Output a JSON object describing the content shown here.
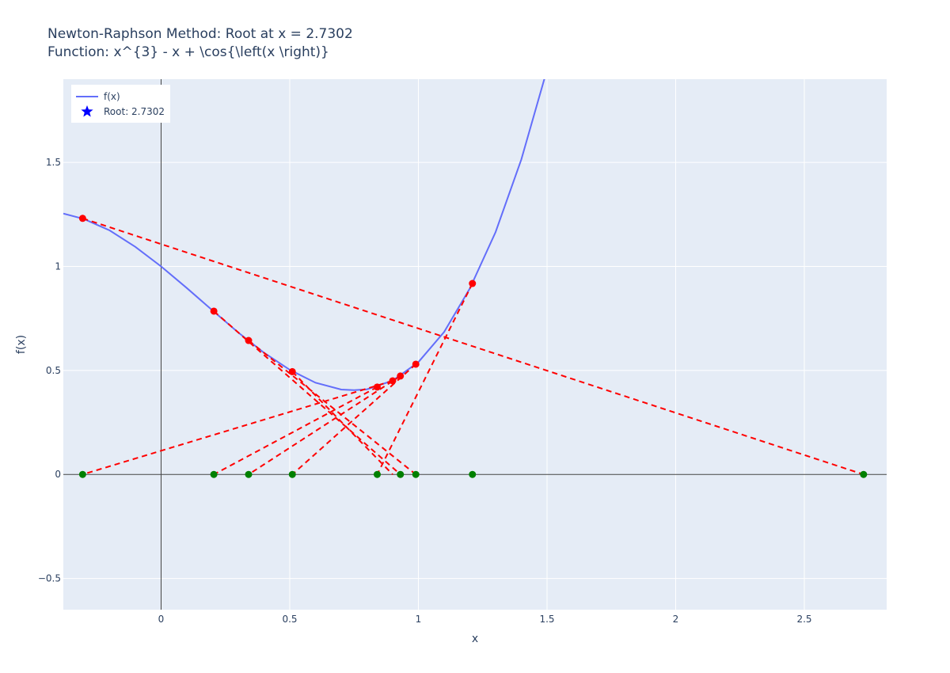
{
  "chart_data": {
    "type": "line",
    "title": "Newton-Raphson Method: Root at x = 2.7302",
    "subtitle": "Function: x^{3} - x + \\cos{\\left(x \\right)}",
    "xlabel": "x",
    "ylabel": "f(x)",
    "xlim": [
      -0.38,
      2.82
    ],
    "ylim": [
      -0.65,
      1.9
    ],
    "x_ticks": [
      0,
      0.5,
      1,
      1.5,
      2,
      2.5
    ],
    "x_tick_labels": [
      "0",
      "0.5",
      "1",
      "1.5",
      "2",
      "2.5"
    ],
    "y_ticks": [
      -0.5,
      0,
      0.5,
      1,
      1.5
    ],
    "y_tick_labels": [
      "−0.5",
      "0",
      "0.5",
      "1",
      "1.5"
    ],
    "grid": true,
    "legend_position": "top-left",
    "legend": [
      {
        "label": "f(x)",
        "marker": "line",
        "color": "#636efa"
      },
      {
        "label": "Root: 2.7302",
        "marker": "star",
        "color": "#0000ff"
      }
    ],
    "function_curve": {
      "name": "f(x)",
      "color": "#636efa",
      "x": [
        -0.38,
        -0.3,
        -0.2,
        -0.1,
        0,
        0.1,
        0.2,
        0.3,
        0.4,
        0.5,
        0.6,
        0.7,
        0.75,
        0.8,
        0.9,
        1.0,
        1.1,
        1.2,
        1.3,
        1.4,
        1.5
      ],
      "y": [
        1.254,
        1.228,
        1.173,
        1.094,
        1.0,
        0.896,
        0.788,
        0.682,
        0.585,
        0.503,
        0.441,
        0.408,
        0.405,
        0.409,
        0.451,
        0.54,
        0.685,
        0.894,
        1.165,
        1.514,
        1.946
      ]
    },
    "iterations": [
      {
        "x_from": 1.21,
        "y_from": 0.918,
        "x_to": 0.84
      },
      {
        "x_from": 0.84,
        "y_from": 0.42,
        "x_to": 0.205
      },
      {
        "x_from": 0.205,
        "y_from": 0.785,
        "x_to": 0.93
      },
      {
        "x_from": 0.93,
        "y_from": 0.473,
        "x_to": 0.34
      },
      {
        "x_from": 0.34,
        "y_from": 0.644,
        "x_to": 0.99
      },
      {
        "x_from": 0.99,
        "y_from": 0.53,
        "x_to": 0.51
      },
      {
        "x_from": 0.51,
        "y_from": 0.494,
        "x_to": 0.9
      },
      {
        "x_from": 0.9,
        "y_from": 0.45,
        "x_to": -0.305
      },
      {
        "x_from": -0.305,
        "y_from": 1.231,
        "x_to": 2.7302
      }
    ],
    "curve_points": {
      "color": "#ff0000",
      "x": [
        1.21,
        0.84,
        0.205,
        0.93,
        0.34,
        0.99,
        0.51,
        0.9,
        -0.305
      ],
      "y": [
        0.918,
        0.42,
        0.785,
        0.473,
        0.644,
        0.53,
        0.494,
        0.45,
        1.231
      ]
    },
    "axis_points": {
      "color": "#008000",
      "x": [
        -0.305,
        0.205,
        0.34,
        0.51,
        0.84,
        0.93,
        0.99,
        1.21,
        2.7302
      ],
      "y": [
        0,
        0,
        0,
        0,
        0,
        0,
        0,
        0,
        0
      ]
    },
    "root": {
      "x": 2.7302,
      "label": "Root: 2.7302"
    },
    "colors": {
      "plot_bg": "#e5ecf6",
      "grid": "#ffffff",
      "zero_line": "#444444",
      "tangent": "#ff0000",
      "text": "#2a3f5f"
    }
  }
}
